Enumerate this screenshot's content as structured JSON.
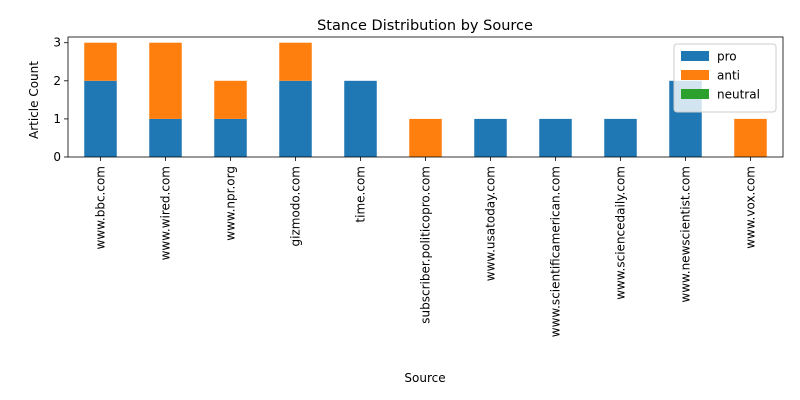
{
  "chart_data": {
    "type": "bar",
    "stacked": true,
    "title": "Stance Distribution by Source",
    "xlabel": "Source",
    "ylabel": "Article Count",
    "categories": [
      "www.bbc.com",
      "www.wired.com",
      "www.npr.org",
      "gizmodo.com",
      "time.com",
      "subscriber.politicopro.com",
      "www.usatoday.com",
      "www.scientificamerican.com",
      "www.sciencedaily.com",
      "www.newscientist.com",
      "www.vox.com"
    ],
    "series": [
      {
        "name": "pro",
        "color": "#1f77b4",
        "values": [
          2,
          1,
          1,
          2,
          2,
          0,
          1,
          1,
          1,
          2,
          0
        ]
      },
      {
        "name": "anti",
        "color": "#ff7f0e",
        "values": [
          1,
          2,
          1,
          1,
          0,
          1,
          0,
          0,
          0,
          0,
          1
        ]
      },
      {
        "name": "neutral",
        "color": "#2ca02c",
        "values": [
          0,
          0,
          0,
          0,
          0,
          0,
          0,
          0,
          0,
          0,
          0
        ]
      }
    ],
    "ylim": [
      0,
      3.15
    ],
    "yticks": [
      0,
      1,
      2,
      3
    ],
    "grid": false,
    "legend_position": "top-right"
  }
}
